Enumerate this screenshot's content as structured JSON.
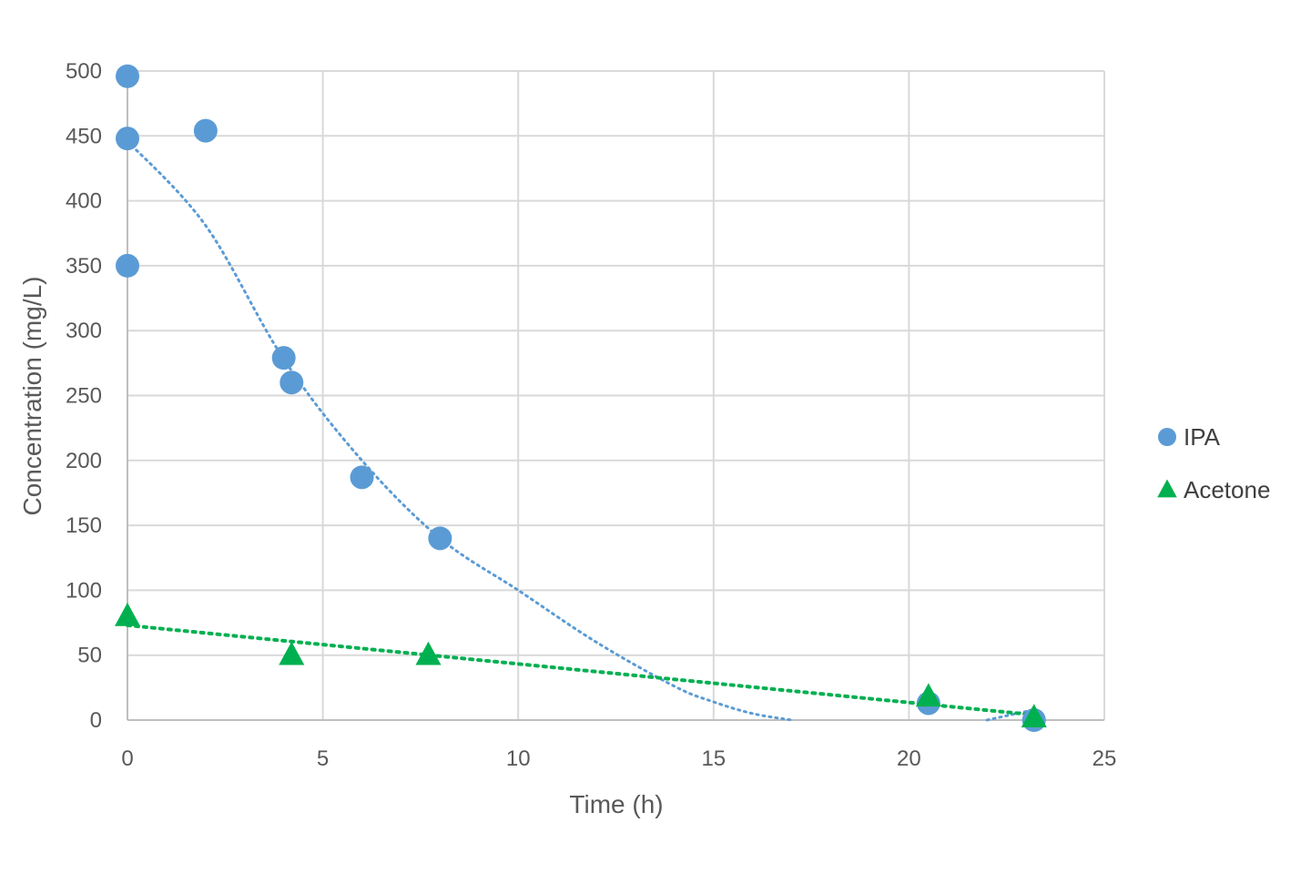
{
  "chart_data": {
    "type": "scatter",
    "title": "",
    "xlabel": "Time (h)",
    "ylabel": "Concentration (mg/L)",
    "xlim": [
      0,
      25
    ],
    "ylim": [
      0,
      500
    ],
    "x_ticks": [
      "0",
      "5",
      "10",
      "15",
      "20",
      "25"
    ],
    "y_ticks": [
      "0",
      "50",
      "100",
      "150",
      "200",
      "250",
      "300",
      "350",
      "400",
      "450",
      "500"
    ],
    "grid": true,
    "legend_position": "right",
    "series": [
      {
        "name": "IPA",
        "marker": "circle",
        "color": "#5B9BD5",
        "points": [
          {
            "x": 0,
            "y": 496
          },
          {
            "x": 0,
            "y": 448
          },
          {
            "x": 0,
            "y": 350
          },
          {
            "x": 2.0,
            "y": 454
          },
          {
            "x": 4.0,
            "y": 279
          },
          {
            "x": 4.2,
            "y": 260
          },
          {
            "x": 6.0,
            "y": 187
          },
          {
            "x": 8.0,
            "y": 140
          },
          {
            "x": 20.5,
            "y": 13
          },
          {
            "x": 23.2,
            "y": 0
          }
        ],
        "trendline": {
          "type": "polynomial",
          "style": "dotted",
          "curve": [
            [
              0,
              446
            ],
            [
              2,
              381
            ],
            [
              4,
              278
            ],
            [
              6,
              200
            ],
            [
              8,
              140
            ],
            [
              10,
              100
            ],
            [
              12,
              60
            ],
            [
              14,
              26
            ],
            [
              15,
              14
            ],
            [
              16,
              5
            ],
            [
              17,
              0
            ]
          ],
          "tail": [
            [
              22,
              0
            ],
            [
              23.2,
              8
            ]
          ]
        }
      },
      {
        "name": "Acetone",
        "marker": "triangle",
        "color": "#00B050",
        "points": [
          {
            "x": 0,
            "y": 80
          },
          {
            "x": 4.2,
            "y": 50
          },
          {
            "x": 7.7,
            "y": 50
          },
          {
            "x": 20.5,
            "y": 18
          },
          {
            "x": 23.2,
            "y": 2
          }
        ],
        "trendline": {
          "type": "linear",
          "style": "dotted",
          "curve": [
            [
              0,
              73
            ],
            [
              23.2,
              4
            ]
          ]
        }
      }
    ]
  }
}
